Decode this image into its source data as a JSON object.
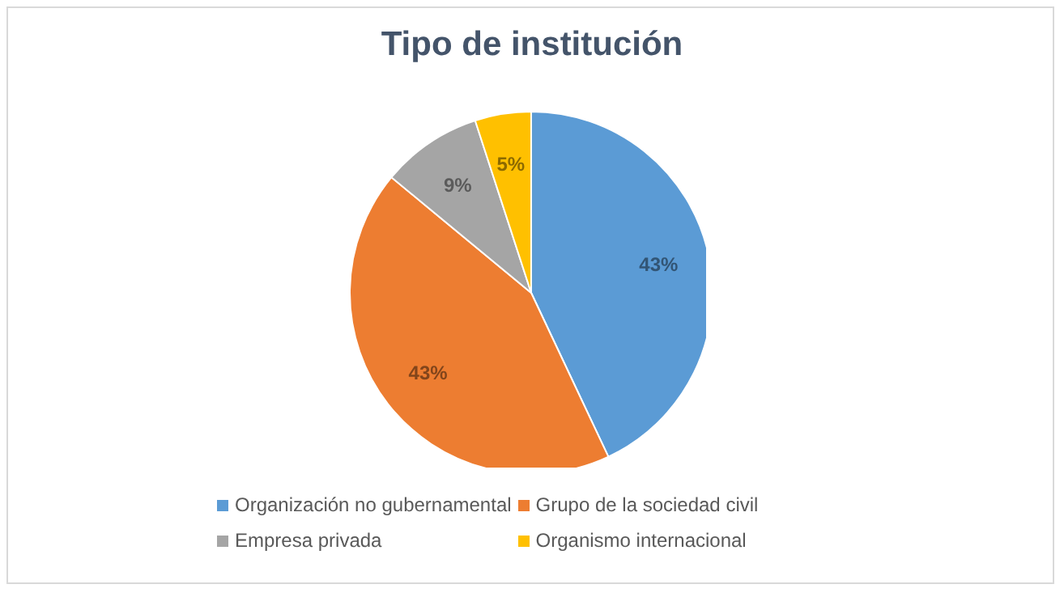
{
  "chart_data": {
    "type": "pie",
    "title": "Tipo de institución",
    "categories": [
      "Organización no gubernamental",
      "Grupo de la sociedad civil",
      "Empresa privada",
      "Organismo internacional"
    ],
    "values": [
      43,
      43,
      9,
      5
    ],
    "colors": [
      "#5b9bd5",
      "#ed7d31",
      "#a5a5a5",
      "#ffc000"
    ],
    "value_labels": [
      "43%",
      "43%",
      "9%",
      "5%"
    ],
    "legend": "bottom"
  }
}
